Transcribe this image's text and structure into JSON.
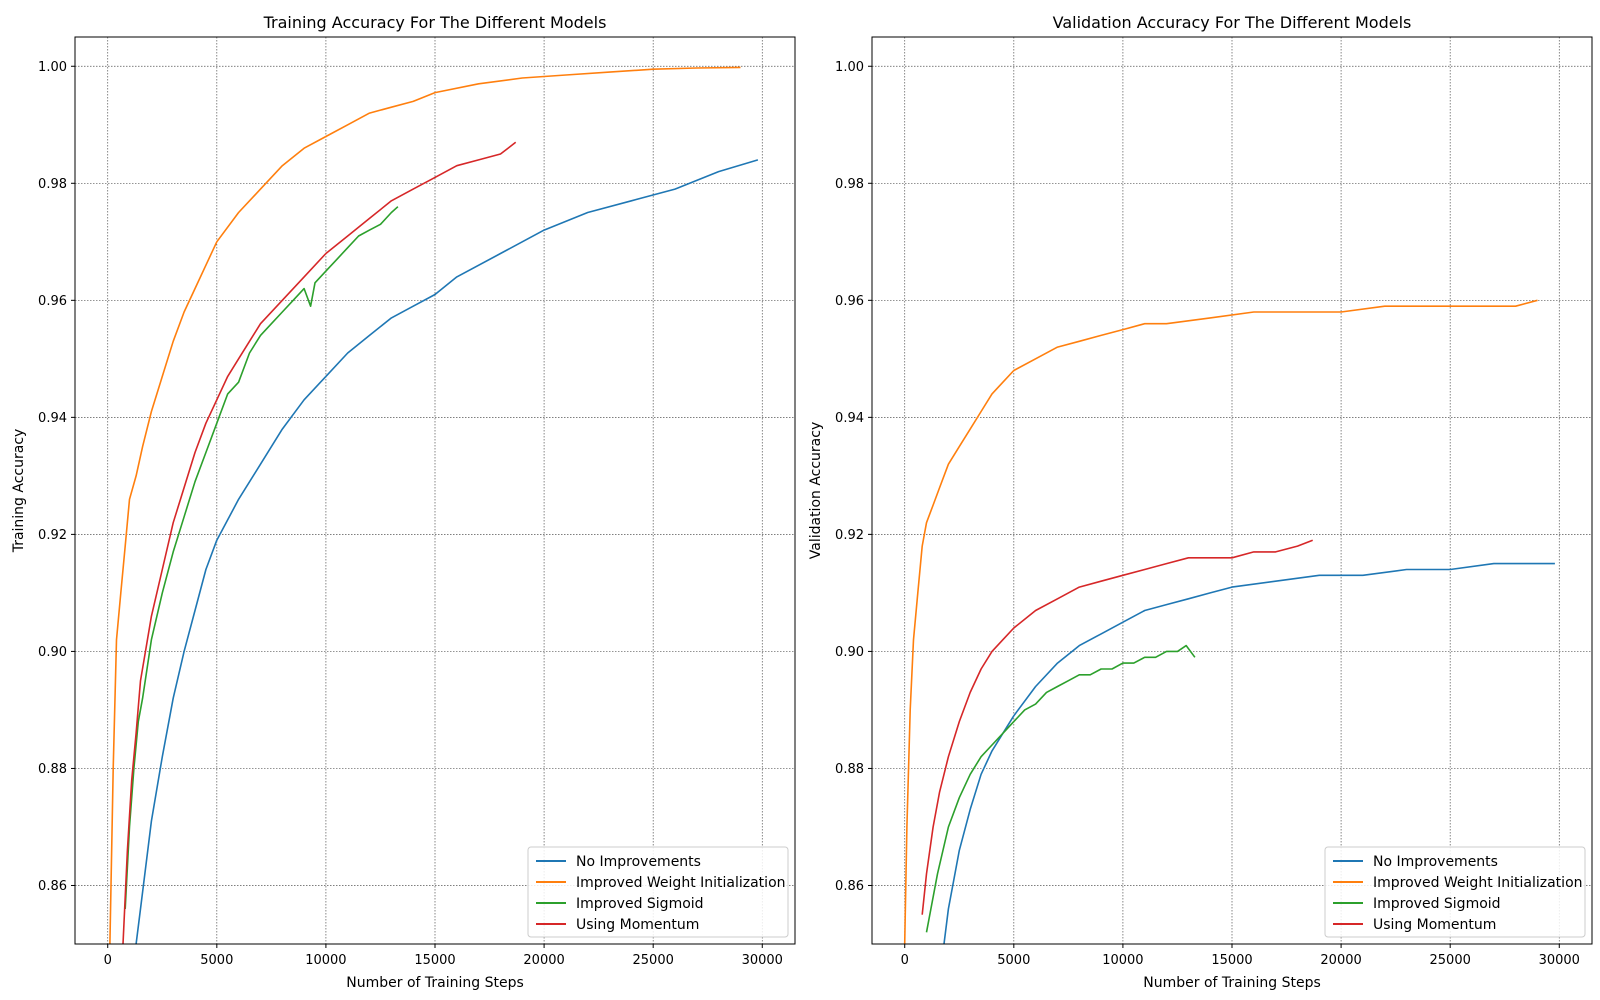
{
  "chart_data": [
    {
      "type": "line",
      "title": "Training Accuracy For The Different Models",
      "xlabel": "Number of Training Steps",
      "ylabel": "Training Accuracy",
      "xlim": [
        -1500,
        31500
      ],
      "ylim": [
        0.85,
        1.005
      ],
      "xticks": [
        0,
        5000,
        10000,
        15000,
        20000,
        25000,
        30000
      ],
      "xtick_labels": [
        "0",
        "5000",
        "10000",
        "15000",
        "20000",
        "25000",
        "30000"
      ],
      "yticks": [
        0.86,
        0.88,
        0.9,
        0.92,
        0.94,
        0.96,
        0.98,
        1.0
      ],
      "ytick_labels": [
        "0.86",
        "0.88",
        "0.90",
        "0.92",
        "0.94",
        "0.96",
        "0.98",
        "1.00"
      ],
      "grid": true,
      "legend_position": "lower-right",
      "series": [
        {
          "name": "No Improvements",
          "color": "#1f77b4",
          "x": [
            1300,
            1500,
            2000,
            2500,
            3000,
            3500,
            4000,
            4500,
            5000,
            6000,
            7000,
            8000,
            9000,
            10000,
            11000,
            12000,
            13000,
            14000,
            15000,
            16000,
            18000,
            20000,
            22000,
            24000,
            26000,
            28000,
            29800
          ],
          "y": [
            0.85,
            0.856,
            0.871,
            0.882,
            0.892,
            0.9,
            0.907,
            0.914,
            0.919,
            0.926,
            0.932,
            0.938,
            0.943,
            0.947,
            0.951,
            0.954,
            0.957,
            0.959,
            0.961,
            0.964,
            0.968,
            0.972,
            0.975,
            0.977,
            0.979,
            0.982,
            0.984
          ]
        },
        {
          "name": "Improved Weight Initialization",
          "color": "#ff7f0e",
          "x": [
            100,
            250,
            400,
            600,
            800,
            1000,
            1300,
            1600,
            2000,
            2500,
            3000,
            3500,
            4000,
            4500,
            5000,
            6000,
            7000,
            8000,
            9000,
            10000,
            11000,
            12000,
            13000,
            14000,
            15000,
            17000,
            19000,
            21000,
            23000,
            25000,
            27000,
            29000
          ],
          "y": [
            0.85,
            0.88,
            0.902,
            0.91,
            0.918,
            0.926,
            0.93,
            0.935,
            0.941,
            0.947,
            0.953,
            0.958,
            0.962,
            0.966,
            0.97,
            0.975,
            0.979,
            0.983,
            0.986,
            0.988,
            0.99,
            0.992,
            0.993,
            0.994,
            0.9955,
            0.997,
            0.998,
            0.9985,
            0.999,
            0.9995,
            0.9997,
            0.9998
          ]
        },
        {
          "name": "Improved Sigmoid",
          "color": "#2ca02c",
          "x": [
            800,
            1000,
            1200,
            1400,
            1600,
            2000,
            2500,
            3000,
            3500,
            4000,
            4500,
            5000,
            5500,
            6000,
            6500,
            7000,
            7500,
            8000,
            8500,
            9000,
            9300,
            9500,
            10000,
            10500,
            11000,
            11500,
            12000,
            12500,
            13000,
            13300
          ],
          "y": [
            0.856,
            0.87,
            0.88,
            0.888,
            0.892,
            0.902,
            0.91,
            0.917,
            0.923,
            0.929,
            0.934,
            0.939,
            0.944,
            0.946,
            0.951,
            0.954,
            0.956,
            0.958,
            0.96,
            0.962,
            0.959,
            0.963,
            0.965,
            0.967,
            0.969,
            0.971,
            0.972,
            0.973,
            0.975,
            0.976
          ]
        },
        {
          "name": "Using Momentum",
          "color": "#d62728",
          "x": [
            700,
            900,
            1100,
            1300,
            1500,
            2000,
            2500,
            3000,
            3500,
            4000,
            4500,
            5000,
            5500,
            6000,
            6500,
            7000,
            8000,
            9000,
            10000,
            11000,
            12000,
            13000,
            14000,
            15000,
            16000,
            17000,
            18000,
            18700
          ],
          "y": [
            0.85,
            0.866,
            0.878,
            0.886,
            0.895,
            0.906,
            0.914,
            0.922,
            0.928,
            0.934,
            0.939,
            0.943,
            0.947,
            0.95,
            0.953,
            0.956,
            0.96,
            0.964,
            0.968,
            0.971,
            0.974,
            0.977,
            0.979,
            0.981,
            0.983,
            0.984,
            0.985,
            0.987
          ]
        }
      ]
    },
    {
      "type": "line",
      "title": "Validation Accuracy For The Different Models",
      "xlabel": "Number of Training Steps",
      "ylabel": "Validation Accuracy",
      "xlim": [
        -1500,
        31500
      ],
      "ylim": [
        0.85,
        1.005
      ],
      "xticks": [
        0,
        5000,
        10000,
        15000,
        20000,
        25000,
        30000
      ],
      "xtick_labels": [
        "0",
        "5000",
        "10000",
        "15000",
        "20000",
        "25000",
        "30000"
      ],
      "yticks": [
        0.86,
        0.88,
        0.9,
        0.92,
        0.94,
        0.96,
        0.98,
        1.0
      ],
      "ytick_labels": [
        "0.86",
        "0.88",
        "0.90",
        "0.92",
        "0.94",
        "0.96",
        "0.98",
        "1.00"
      ],
      "grid": true,
      "legend_position": "lower-right",
      "series": [
        {
          "name": "No Improvements",
          "color": "#1f77b4",
          "x": [
            1800,
            2000,
            2500,
            3000,
            3500,
            4000,
            4500,
            5000,
            6000,
            7000,
            8000,
            9000,
            10000,
            11000,
            12000,
            13000,
            14000,
            15000,
            17000,
            19000,
            21000,
            23000,
            25000,
            27000,
            29000,
            29800
          ],
          "y": [
            0.85,
            0.856,
            0.866,
            0.873,
            0.879,
            0.883,
            0.886,
            0.889,
            0.894,
            0.898,
            0.901,
            0.903,
            0.905,
            0.907,
            0.908,
            0.909,
            0.91,
            0.911,
            0.912,
            0.913,
            0.913,
            0.914,
            0.914,
            0.915,
            0.915,
            0.915
          ]
        },
        {
          "name": "Improved Weight Initialization",
          "color": "#ff7f0e",
          "x": [
            0,
            100,
            250,
            400,
            600,
            800,
            1000,
            1300,
            1600,
            2000,
            2500,
            3000,
            3500,
            4000,
            4500,
            5000,
            6000,
            7000,
            8000,
            9000,
            10000,
            11000,
            12000,
            14000,
            16000,
            18000,
            20000,
            22000,
            24000,
            26000,
            28000,
            29000
          ],
          "y": [
            0.85,
            0.87,
            0.89,
            0.902,
            0.91,
            0.918,
            0.922,
            0.925,
            0.928,
            0.932,
            0.935,
            0.938,
            0.941,
            0.944,
            0.946,
            0.948,
            0.95,
            0.952,
            0.953,
            0.954,
            0.955,
            0.956,
            0.956,
            0.957,
            0.958,
            0.958,
            0.958,
            0.959,
            0.959,
            0.959,
            0.959,
            0.96
          ]
        },
        {
          "name": "Improved Sigmoid",
          "color": "#2ca02c",
          "x": [
            1000,
            1200,
            1500,
            2000,
            2500,
            3000,
            3500,
            4000,
            4500,
            5000,
            5500,
            6000,
            6500,
            7000,
            7500,
            8000,
            8500,
            9000,
            9500,
            10000,
            10500,
            11000,
            11500,
            12000,
            12500,
            12900,
            13300
          ],
          "y": [
            0.852,
            0.856,
            0.862,
            0.87,
            0.875,
            0.879,
            0.882,
            0.884,
            0.886,
            0.888,
            0.89,
            0.891,
            0.893,
            0.894,
            0.895,
            0.896,
            0.896,
            0.897,
            0.897,
            0.898,
            0.898,
            0.899,
            0.899,
            0.9,
            0.9,
            0.901,
            0.899
          ]
        },
        {
          "name": "Using Momentum",
          "color": "#d62728",
          "x": [
            800,
            1000,
            1300,
            1600,
            2000,
            2500,
            3000,
            3500,
            4000,
            4500,
            5000,
            6000,
            7000,
            8000,
            9000,
            10000,
            11000,
            12000,
            13000,
            14000,
            15000,
            16000,
            17000,
            18000,
            18700
          ],
          "y": [
            0.855,
            0.862,
            0.87,
            0.876,
            0.882,
            0.888,
            0.893,
            0.897,
            0.9,
            0.902,
            0.904,
            0.907,
            0.909,
            0.911,
            0.912,
            0.913,
            0.914,
            0.915,
            0.916,
            0.916,
            0.916,
            0.917,
            0.917,
            0.918,
            0.919
          ]
        }
      ]
    }
  ]
}
